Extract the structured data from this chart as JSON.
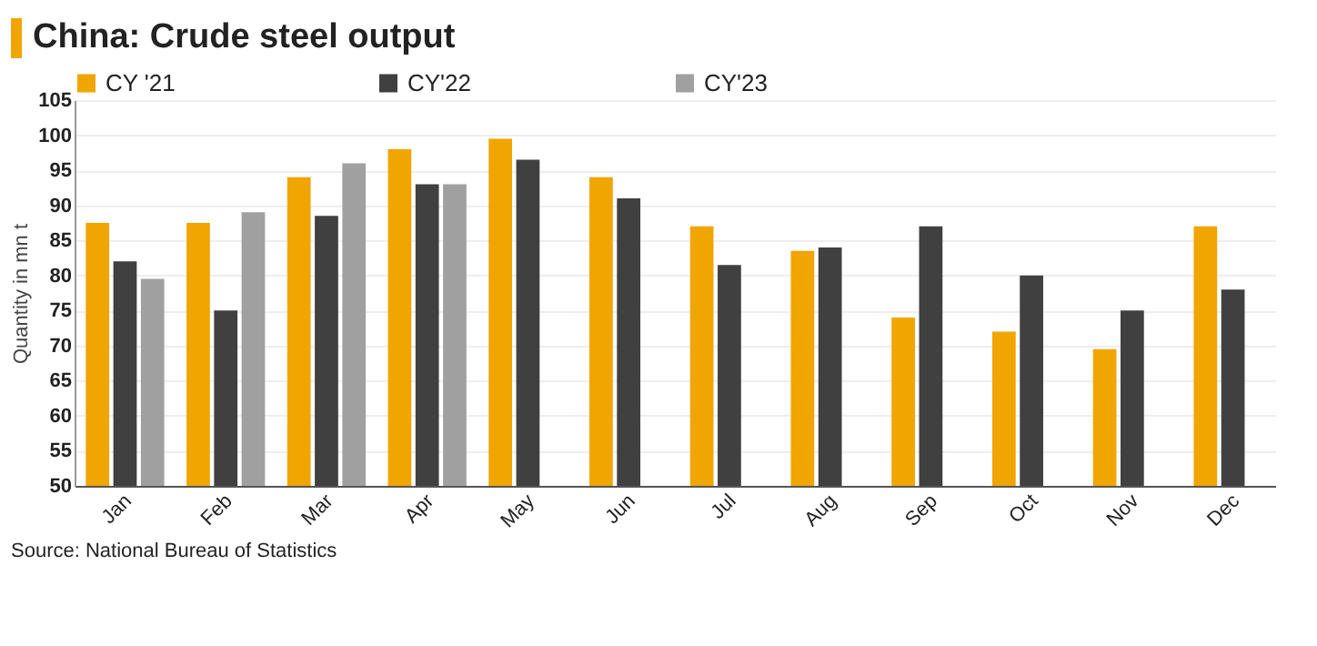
{
  "chart_data": {
    "type": "bar",
    "title": "China: Crude steel output",
    "ylabel": "Quantity in mn t",
    "categories": [
      "Jan",
      "Feb",
      "Mar",
      "Apr",
      "May",
      "Jun",
      "Jul",
      "Aug",
      "Sep",
      "Oct",
      "Nov",
      "Dec"
    ],
    "series": [
      {
        "name": "CY '21",
        "color": "#f0a500",
        "values": [
          87.5,
          87.5,
          94,
          98,
          99.5,
          94,
          87,
          83.5,
          74,
          72,
          69.5,
          87
        ]
      },
      {
        "name": "CY'22",
        "color": "#404040",
        "values": [
          82,
          75,
          88.5,
          93,
          96.5,
          91,
          81.5,
          84,
          87,
          80,
          75,
          78
        ]
      },
      {
        "name": "CY'23",
        "color": "#a0a0a0",
        "values": [
          79.5,
          89,
          96,
          93,
          null,
          null,
          null,
          null,
          null,
          null,
          null,
          null
        ]
      }
    ],
    "ylim": [
      50,
      105
    ],
    "yticks": [
      50,
      55,
      60,
      65,
      70,
      75,
      80,
      85,
      90,
      95,
      100,
      105
    ],
    "grid": "y",
    "legend": "top",
    "annotations": [
      "Source: National Bureau of Statistics"
    ]
  }
}
